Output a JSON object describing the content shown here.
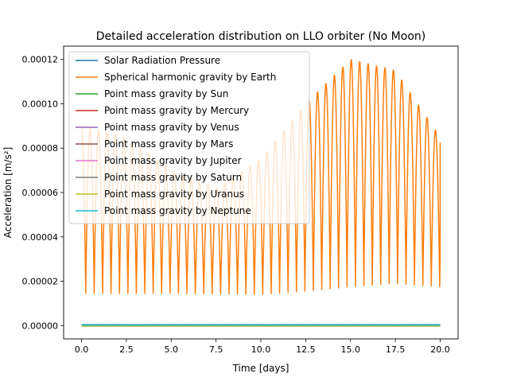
{
  "chart_data": {
    "type": "line",
    "title": "Detailed acceleration distribution on LLO orbiter (No Moon)",
    "xlabel": "Time [days]",
    "ylabel": "Acceleration [m/s²]",
    "xlim": [
      -1.0,
      21.0
    ],
    "ylim": [
      -6e-06,
      0.000126
    ],
    "xticks": [
      0,
      2.5,
      5,
      7.5,
      10,
      12.5,
      15,
      17.5,
      20
    ],
    "xtick_labels": [
      "0.0",
      "2.5",
      "5.0",
      "7.5",
      "10.0",
      "12.5",
      "15.0",
      "17.5",
      "20.0"
    ],
    "yticks": [
      0,
      2e-05,
      4e-05,
      6e-05,
      8e-05,
      0.0001,
      0.00012
    ],
    "ytick_labels": [
      "0.00000",
      "0.00002",
      "0.00004",
      "0.00006",
      "0.00008",
      "0.00010",
      "0.00012"
    ],
    "grid": false,
    "legend_position": "top-left",
    "earth_curve": {
      "description_free": true,
      "x_start": 0.0,
      "x_end": 20.0,
      "oscillation_period_days": 0.47,
      "minima_x": [
        0,
        5,
        10,
        12.5,
        15,
        17.5,
        20
      ],
      "minima_y": [
        1.45e-05,
        1.45e-05,
        1.4e-05,
        1.55e-05,
        1.75e-05,
        1.9e-05,
        1.75e-05
      ],
      "maxima_x": [
        0,
        2.5,
        5,
        7.5,
        10,
        12.5,
        15,
        17.5,
        20
      ],
      "maxima_y": [
        9e-05,
        8.5e-05,
        7e-05,
        6.2e-05,
        7.5e-05,
        0.0001,
        0.00012,
        0.000115,
        8.5e-05
      ],
      "end_value": 8.25e-05
    },
    "series": [
      {
        "name": "Solar Radiation Pressure",
        "color": "#1f77b4",
        "value": 2e-07
      },
      {
        "name": "Spherical harmonic gravity by Earth",
        "color": "#ff7f0e",
        "value": null
      },
      {
        "name": "Point mass gravity by Sun",
        "color": "#2ca02c",
        "value": 4e-07
      },
      {
        "name": "Point mass gravity by Mercury",
        "color": "#d62728",
        "value": 0.0
      },
      {
        "name": "Point mass gravity by Venus",
        "color": "#9467bd",
        "value": 0.0
      },
      {
        "name": "Point mass gravity by Mars",
        "color": "#8c564b",
        "value": 0.0
      },
      {
        "name": "Point mass gravity by Jupiter",
        "color": "#e377c2",
        "value": 0.0
      },
      {
        "name": "Point mass gravity by Saturn",
        "color": "#7f7f7f",
        "value": 0.0
      },
      {
        "name": "Point mass gravity by Uranus",
        "color": "#bcbd22",
        "value": 0.0
      },
      {
        "name": "Point mass gravity by Neptune",
        "color": "#17becf",
        "value": 0.0
      }
    ]
  }
}
